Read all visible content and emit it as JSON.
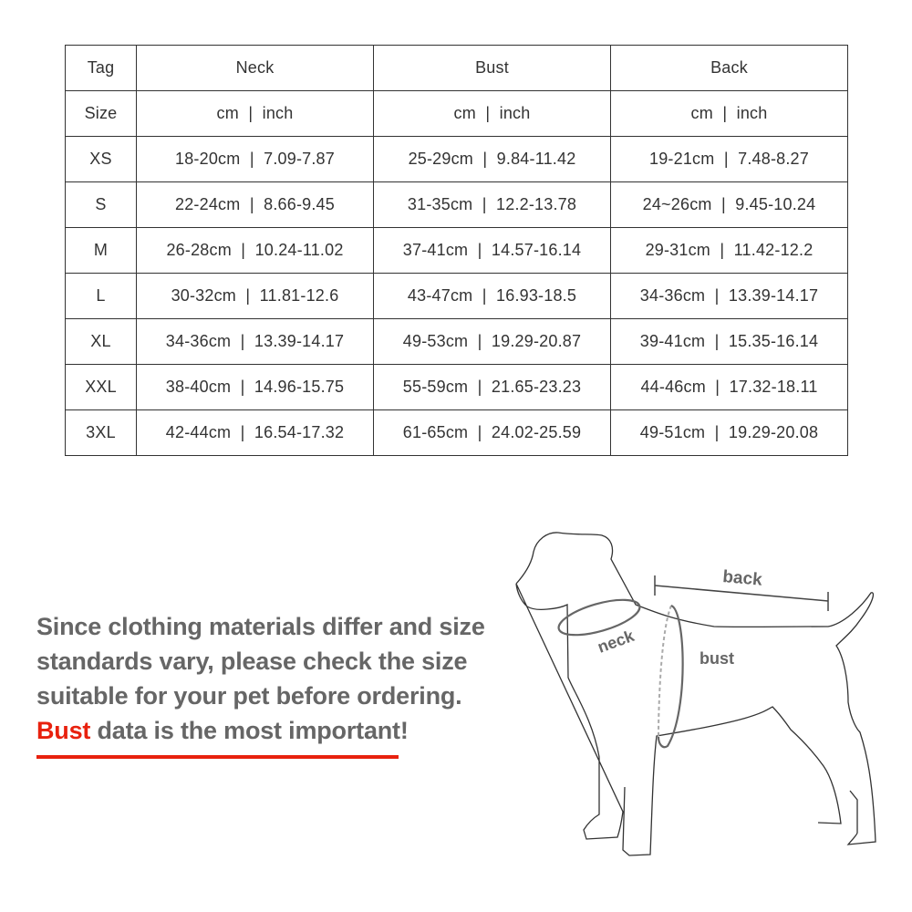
{
  "table": {
    "header": [
      "Tag",
      "Neck",
      "Bust",
      "Back"
    ],
    "units": [
      "Size",
      "cm  |  inch",
      "cm  |  inch",
      "cm  |  inch"
    ],
    "rows": [
      [
        "XS",
        "18-20cm  |  7.09-7.87",
        "25-29cm  |  9.84-11.42",
        "19-21cm  |  7.48-8.27"
      ],
      [
        "S",
        "22-24cm  |  8.66-9.45",
        "31-35cm  |  12.2-13.78",
        "24~26cm  |  9.45-10.24"
      ],
      [
        "M",
        "26-28cm  |  10.24-11.02",
        "37-41cm  |  14.57-16.14",
        "29-31cm  |  11.42-12.2"
      ],
      [
        "L",
        "30-32cm  |  11.81-12.6",
        "43-47cm  |  16.93-18.5",
        "34-36cm  |  13.39-14.17"
      ],
      [
        "XL",
        "34-36cm  |  13.39-14.17",
        "49-53cm  |  19.29-20.87",
        "39-41cm  |  15.35-16.14"
      ],
      [
        "XXL",
        "38-40cm  |  14.96-15.75",
        "55-59cm  |  21.65-23.23",
        "44-46cm  |  17.32-18.11"
      ],
      [
        "3XL",
        "42-44cm  |  16.54-17.32",
        "61-65cm  |  24.02-25.59",
        "49-51cm  |  19.29-20.08"
      ]
    ]
  },
  "note": {
    "line1": "Since clothing materials differ and size",
    "line2": "standards vary, please check the size",
    "line3": "suitable for your pet before ordering.",
    "highlight": "Bust",
    "line4_rest": " data is the most important!"
  },
  "diagram": {
    "back_label": "back",
    "neck_label": "neck",
    "bust_label": "bust"
  },
  "colors": {
    "accent": "#e8210e",
    "text": "#666666",
    "lines": "#333333"
  }
}
